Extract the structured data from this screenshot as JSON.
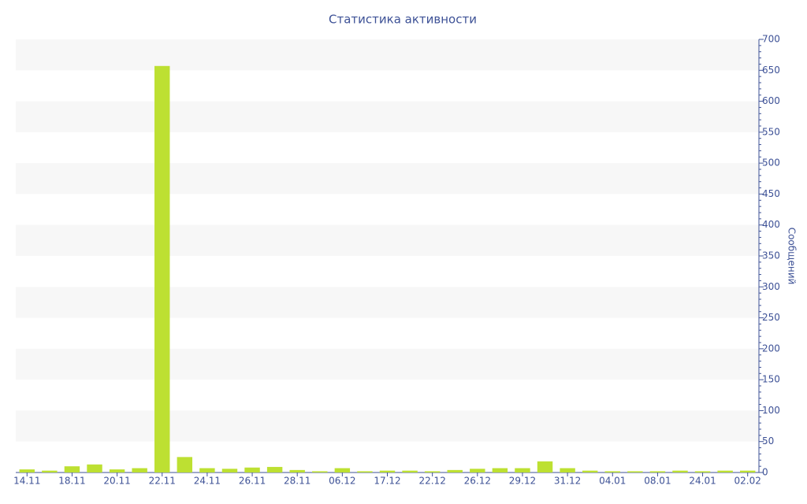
{
  "chart_data": {
    "type": "bar",
    "title": "Статистика активности",
    "y_axis_label": "Сообщений",
    "categories": [
      "14.11",
      null,
      "18.11",
      null,
      "20.11",
      null,
      "22.11",
      null,
      "24.11",
      null,
      "26.11",
      null,
      "28.11",
      null,
      "06.12",
      null,
      "17.12",
      null,
      "22.12",
      null,
      "26.12",
      null,
      "29.12",
      null,
      "31.12",
      null,
      "04.01",
      null,
      "08.01",
      null,
      "24.01",
      null,
      "02.02"
    ],
    "values": [
      5,
      3,
      10,
      13,
      5,
      7,
      657,
      25,
      7,
      6,
      8,
      9,
      4,
      2,
      7,
      2,
      3,
      3,
      2,
      4,
      6,
      7,
      7,
      18,
      7,
      3,
      2,
      2,
      2,
      3,
      2,
      3,
      3
    ],
    "color": "#bde032",
    "ylim": [
      0,
      700
    ],
    "yticks": [
      0,
      50,
      100,
      150,
      200,
      250,
      300,
      350,
      400,
      450,
      500,
      550,
      600,
      650,
      700
    ],
    "y_axis_side": "right",
    "grid": "bands"
  }
}
